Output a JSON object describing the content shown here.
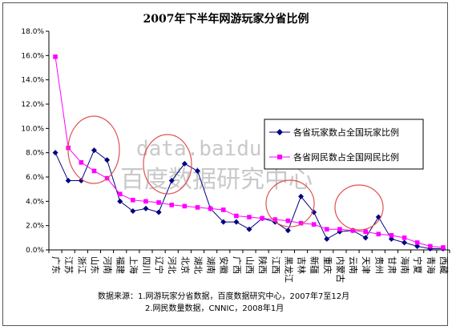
{
  "chart_data": {
    "type": "line",
    "title": "2007年下半年网游玩家分省比例",
    "categories": [
      "广东",
      "江苏",
      "浙江",
      "山东",
      "河南",
      "福建",
      "上海",
      "四川",
      "辽宁",
      "河北",
      "北京",
      "湖北",
      "湖南",
      "安徽",
      "广西",
      "山西",
      "陕西",
      "江西",
      "黑龙江",
      "吉林",
      "新疆",
      "重庆",
      "内蒙古",
      "云南",
      "天津",
      "贵州",
      "甘肃",
      "海南",
      "宁夏",
      "青海",
      "西藏"
    ],
    "y_ticks": [
      "0.0%",
      "2.0%",
      "4.0%",
      "6.0%",
      "8.0%",
      "10.0%",
      "12.0%",
      "14.0%",
      "16.0%",
      "18.0%"
    ],
    "ylim": [
      0,
      18
    ],
    "series": [
      {
        "name": "各省玩家数占全国玩家比例",
        "color": "#000080",
        "marker": "diamond",
        "values": [
          8.0,
          5.7,
          5.7,
          8.2,
          7.4,
          4.0,
          3.2,
          3.4,
          3.1,
          5.7,
          7.1,
          6.5,
          3.4,
          2.3,
          2.3,
          1.7,
          2.6,
          2.3,
          1.6,
          4.4,
          3.1,
          0.9,
          1.5,
          1.6,
          1.0,
          2.7,
          0.9,
          0.6,
          0.3,
          0.1,
          0.1
        ]
      },
      {
        "name": "各省网民数占全国网民比例",
        "color": "#ff00ff",
        "marker": "square",
        "values": [
          15.9,
          8.4,
          7.2,
          6.5,
          5.9,
          4.6,
          4.1,
          4.0,
          3.9,
          3.7,
          3.6,
          3.5,
          3.4,
          3.3,
          2.8,
          2.7,
          2.6,
          2.5,
          2.4,
          2.2,
          2.1,
          1.7,
          1.7,
          1.6,
          1.5,
          1.3,
          1.2,
          1.0,
          0.6,
          0.3,
          0.2
        ]
      }
    ],
    "legend_position": "right",
    "grid": false
  },
  "watermark": {
    "line1": "data.baidu.com",
    "line2": "百度数据研究中心"
  },
  "footnote": {
    "line1": "数据来源：1.网游玩家分省数据，百度数据研究中心，2007年7至12月",
    "line2": "2.网民数量数据，CNNIC，2008年1月"
  }
}
